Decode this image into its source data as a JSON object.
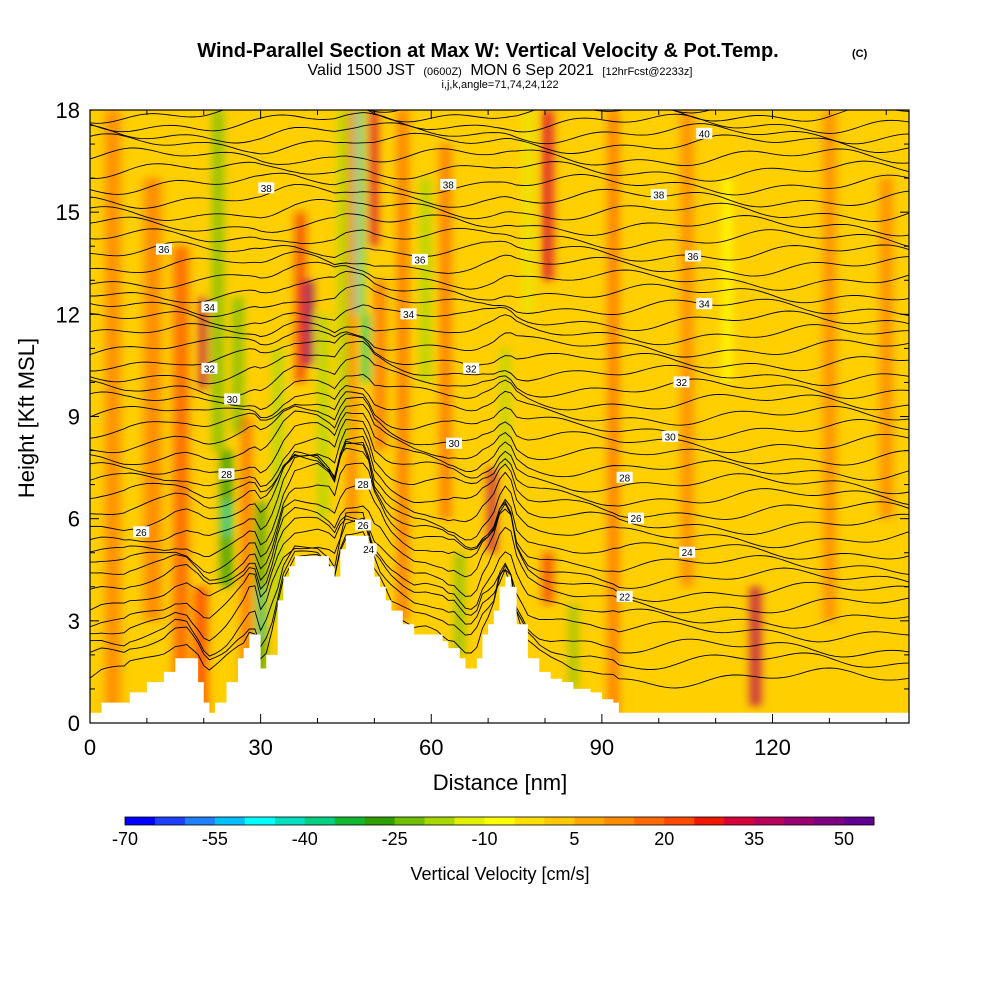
{
  "title": {
    "main": "Wind-Parallel Section at Max W: Vertical Velocity & Pot.Temp.",
    "copyright": "(C)",
    "line2_prefix": "Valid 1500 JST",
    "line2_utc": "(0600Z)",
    "line2_date": "MON 6 Sep 2021",
    "line2_fcst": "[12hrFcst@2233z]",
    "line3": "i,j,k,angle=71,74,24,122"
  },
  "colors": {
    "background": "#ffffff",
    "terrain": "#ffffff",
    "contour": "#000000"
  },
  "chart_data": {
    "type": "heatmap",
    "title": "Wind-Parallel Section at Max W: Vertical Velocity & Pot.Temp.",
    "xlabel": "Distance [nm]",
    "ylabel": "Height [Kft MSL]",
    "xlim": [
      0,
      144
    ],
    "ylim": [
      0,
      18
    ],
    "x_ticks": [
      "0",
      "30",
      "60",
      "90",
      "120"
    ],
    "x_tick_values": [
      0,
      30,
      60,
      90,
      120
    ],
    "y_ticks": [
      "0",
      "3",
      "6",
      "9",
      "12",
      "15",
      "18"
    ],
    "y_tick_values": [
      0,
      3,
      6,
      9,
      12,
      15,
      18
    ],
    "colorbar": {
      "label": "Vertical Velocity [cm/s]",
      "bounds": [
        -70,
        55
      ],
      "step": 5,
      "tick_labels": [
        "-70",
        "-55",
        "-40",
        "-25",
        "-10",
        "5",
        "20",
        "35",
        "50"
      ],
      "tick_values": [
        -70,
        -55,
        -40,
        -25,
        -10,
        5,
        20,
        35,
        50
      ],
      "colors": [
        "#0000ff",
        "#1f3fff",
        "#1f7fff",
        "#00bfff",
        "#00ffff",
        "#00e0c0",
        "#00d080",
        "#10b830",
        "#30a000",
        "#70c000",
        "#a8d800",
        "#e0f000",
        "#ffff00",
        "#ffe000",
        "#ffc800",
        "#ffa800",
        "#ff8c00",
        "#ff6a00",
        "#ff4800",
        "#f01800",
        "#d8003a",
        "#b8005a",
        "#980070",
        "#7c0080",
        "#600090"
      ]
    },
    "velocity_bands": [
      {
        "x": 4,
        "w": 2.5,
        "z0": 0,
        "z1": 18,
        "value": 12
      },
      {
        "x": 11,
        "w": 3,
        "z0": 3,
        "z1": 16,
        "value": 14
      },
      {
        "x": 16,
        "w": 2.5,
        "z0": 0.5,
        "z1": 14,
        "value": 18
      },
      {
        "x": 20,
        "w": 1.2,
        "z0": 9.8,
        "z1": 12.5,
        "value": 35
      },
      {
        "x": 19.5,
        "w": 2,
        "z0": 0,
        "z1": 4,
        "value": 20
      },
      {
        "x": 22.5,
        "w": 1.5,
        "z0": 8,
        "z1": 18,
        "value": -25
      },
      {
        "x": 24,
        "w": 1.8,
        "z0": 4,
        "z1": 8,
        "value": -30
      },
      {
        "x": 24,
        "w": 1,
        "z0": 5.5,
        "z1": 6.5,
        "value": -45
      },
      {
        "x": 26,
        "w": 1.5,
        "z0": 8.5,
        "z1": 12.5,
        "value": -25
      },
      {
        "x": 27.5,
        "w": 1.5,
        "z0": 0,
        "z1": 9,
        "value": 15
      },
      {
        "x": 30,
        "w": 1.5,
        "z0": 1.5,
        "z1": 6.5,
        "value": -30
      },
      {
        "x": 30,
        "w": 0.7,
        "z0": 2.5,
        "z1": 4,
        "value": -45
      },
      {
        "x": 33,
        "w": 1.5,
        "z0": 3,
        "z1": 11,
        "value": -20
      },
      {
        "x": 37,
        "w": 1.2,
        "z0": 10,
        "z1": 15,
        "value": 25
      },
      {
        "x": 38.5,
        "w": 1.2,
        "z0": 10.5,
        "z1": 13,
        "value": 45
      },
      {
        "x": 41,
        "w": 1.5,
        "z0": 6,
        "z1": 12,
        "value": -20
      },
      {
        "x": 44.5,
        "w": 1.5,
        "z0": 8,
        "z1": 18,
        "value": -20
      },
      {
        "x": 46,
        "w": 0.9,
        "z0": 6,
        "z1": 18,
        "value": 20
      },
      {
        "x": 47.3,
        "w": 1.2,
        "z0": 12,
        "z1": 18,
        "value": -45
      },
      {
        "x": 48.5,
        "w": 1.3,
        "z0": 10,
        "z1": 12,
        "value": -40
      },
      {
        "x": 49.8,
        "w": 1.3,
        "z0": 14,
        "z1": 18,
        "value": 30
      },
      {
        "x": 51,
        "w": 1.5,
        "z0": 8,
        "z1": 13,
        "value": 15
      },
      {
        "x": 55,
        "w": 1.5,
        "z0": 3,
        "z1": 18,
        "value": 15
      },
      {
        "x": 59,
        "w": 1.5,
        "z0": 10,
        "z1": 16,
        "value": -20
      },
      {
        "x": 62.5,
        "w": 1.5,
        "z0": 6,
        "z1": 17,
        "value": 18
      },
      {
        "x": 65,
        "w": 1.2,
        "z0": 2,
        "z1": 5,
        "value": -25
      },
      {
        "x": 70.7,
        "w": 1.2,
        "z0": 5,
        "z1": 7.5,
        "value": 35
      },
      {
        "x": 73,
        "w": 1.2,
        "z0": 7.5,
        "z1": 11,
        "value": -20
      },
      {
        "x": 77,
        "w": 1.2,
        "z0": 12,
        "z1": 18,
        "value": -15
      },
      {
        "x": 80.5,
        "w": 1.5,
        "z0": 13,
        "z1": 18,
        "value": 30
      },
      {
        "x": 80.5,
        "w": 1.2,
        "z0": 3.5,
        "z1": 5,
        "value": 25
      },
      {
        "x": 85,
        "w": 1,
        "z0": 1,
        "z1": 3.5,
        "value": -25
      },
      {
        "x": 92,
        "w": 1.5,
        "z0": 0,
        "z1": 18,
        "value": 15
      },
      {
        "x": 105,
        "w": 2,
        "z0": 4,
        "z1": 18,
        "value": 12
      },
      {
        "x": 112,
        "w": 1.5,
        "z0": 10,
        "z1": 16,
        "value": -10
      },
      {
        "x": 117,
        "w": 1.5,
        "z0": 0.5,
        "z1": 4,
        "value": 35
      },
      {
        "x": 130,
        "w": 2,
        "z0": 3,
        "z1": 18,
        "value": 10
      },
      {
        "x": 140,
        "w": 2,
        "z0": 6,
        "z1": 16,
        "value": 12
      }
    ],
    "terrain": {
      "x": [
        0,
        2,
        6,
        7,
        10,
        13,
        15,
        17,
        19,
        20,
        21,
        22,
        24,
        26,
        27,
        28,
        29,
        30,
        31,
        33,
        34,
        35,
        36,
        40,
        42,
        43,
        44,
        45,
        46,
        47,
        48,
        49,
        50,
        51,
        52,
        53,
        55,
        57,
        58,
        59,
        62,
        63,
        64,
        65,
        66,
        67,
        68,
        69,
        70,
        71,
        72,
        73,
        74,
        75,
        77,
        79,
        81,
        83,
        85,
        88,
        90,
        92,
        93,
        94,
        100,
        115,
        120,
        130,
        144
      ],
      "z": [
        0.3,
        0.6,
        0.6,
        0.9,
        1.2,
        1.5,
        1.9,
        1.9,
        1.2,
        0.6,
        0.3,
        0.6,
        1.2,
        1.9,
        2.2,
        2.6,
        2.6,
        1.6,
        2.0,
        3.6,
        4.3,
        4.6,
        4.9,
        4.9,
        4.6,
        4.3,
        5.1,
        5.5,
        5.5,
        5.5,
        5.5,
        5.1,
        4.3,
        4.0,
        3.6,
        3.3,
        2.9,
        2.6,
        2.6,
        2.6,
        2.4,
        2.2,
        2.2,
        1.9,
        1.6,
        1.6,
        1.9,
        2.6,
        2.9,
        3.3,
        4.0,
        4.3,
        4.0,
        2.9,
        1.9,
        1.5,
        1.3,
        1.2,
        1.0,
        0.9,
        0.7,
        0.6,
        0.3,
        0.3,
        0.3,
        0.3,
        0.3,
        0.3,
        0.3
      ]
    },
    "isentropes": {
      "levels": [
        18,
        18.5,
        19,
        19.5,
        20,
        20.5,
        21,
        21.5,
        22,
        22.5,
        23,
        23.5,
        24,
        24.5,
        25,
        25.5,
        26,
        26.5,
        27,
        27.5,
        28,
        28.5,
        29,
        29.5,
        30,
        30.5,
        31,
        31.5,
        32,
        32.5,
        33,
        33.5,
        34,
        34.5,
        35,
        35.5,
        36,
        36.5,
        37,
        37.5,
        38,
        38.5,
        39,
        39.5,
        40
      ],
      "base_height_kft": [
        1.2,
        1.7,
        2.1,
        2.6,
        3.0,
        3.4,
        3.8,
        4.2,
        4.6,
        5.0,
        5.4,
        5.8,
        6.2,
        6.6,
        7.0,
        7.4,
        7.8,
        8.2,
        8.6,
        9.0,
        9.4,
        9.8,
        10.2,
        10.6,
        11.0,
        11.4,
        11.8,
        12.2,
        12.6,
        13.0,
        13.4,
        13.8,
        14.2,
        14.6,
        15.0,
        15.4,
        15.8,
        16.2,
        16.6,
        17.0,
        17.3,
        17.6,
        17.9,
        18.2,
        18.5
      ],
      "labels": [
        {
          "text": "22",
          "x": 94,
          "z": 3.7
        },
        {
          "text": "24",
          "x": 49,
          "z": 5.1
        },
        {
          "text": "24",
          "x": 105,
          "z": 5.0
        },
        {
          "text": "26",
          "x": 9,
          "z": 5.6
        },
        {
          "text": "26",
          "x": 48,
          "z": 5.8
        },
        {
          "text": "26",
          "x": 96,
          "z": 6.0
        },
        {
          "text": "28",
          "x": 24,
          "z": 7.3
        },
        {
          "text": "28",
          "x": 48,
          "z": 7.0
        },
        {
          "text": "28",
          "x": 94,
          "z": 7.2
        },
        {
          "text": "30",
          "x": 25,
          "z": 9.5
        },
        {
          "text": "30",
          "x": 64,
          "z": 8.2
        },
        {
          "text": "30",
          "x": 102,
          "z": 8.4
        },
        {
          "text": "32",
          "x": 21,
          "z": 10.4
        },
        {
          "text": "32",
          "x": 67,
          "z": 10.4
        },
        {
          "text": "32",
          "x": 104,
          "z": 10.0
        },
        {
          "text": "34",
          "x": 21,
          "z": 12.2
        },
        {
          "text": "34",
          "x": 56,
          "z": 12.0
        },
        {
          "text": "34",
          "x": 108,
          "z": 12.3
        },
        {
          "text": "36",
          "x": 13,
          "z": 13.9
        },
        {
          "text": "36",
          "x": 58,
          "z": 13.6
        },
        {
          "text": "36",
          "x": 106,
          "z": 13.7
        },
        {
          "text": "38",
          "x": 31,
          "z": 15.7
        },
        {
          "text": "38",
          "x": 63,
          "z": 15.8
        },
        {
          "text": "38",
          "x": 100,
          "z": 15.5
        },
        {
          "text": "40",
          "x": 108,
          "z": 17.3
        }
      ]
    }
  }
}
